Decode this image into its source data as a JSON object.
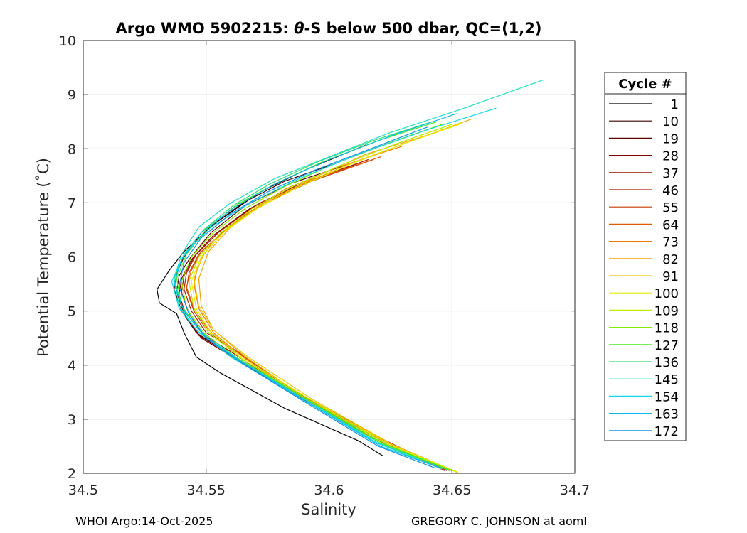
{
  "chart_data": {
    "type": "line",
    "title": {
      "prefix": "Argo WMO 5902215: ",
      "theta": "θ",
      "suffix": "-S below 500 dbar,  QC=(1,2)"
    },
    "xlabel": "Salinity",
    "ylabel": "Potential Temperature (˚C)",
    "xlim": [
      34.5,
      34.7
    ],
    "ylim": [
      2,
      10
    ],
    "xticks": [
      34.5,
      34.55,
      34.6,
      34.65,
      34.7
    ],
    "xtick_labels": [
      "34.5",
      "34.55",
      "34.6",
      "34.65",
      "34.7"
    ],
    "yticks": [
      2,
      3,
      4,
      5,
      6,
      7,
      8,
      9,
      10
    ],
    "ytick_labels": [
      "2",
      "3",
      "4",
      "5",
      "6",
      "7",
      "8",
      "9",
      "10"
    ],
    "grid": true,
    "legend": {
      "title": "Cycle #",
      "placement": "outside-right",
      "entries": [
        {
          "label": "1",
          "color": "#000000"
        },
        {
          "label": "10",
          "color": "#3a0000"
        },
        {
          "label": "19",
          "color": "#5c0000"
        },
        {
          "label": "28",
          "color": "#800000"
        },
        {
          "label": "37",
          "color": "#9a0f00"
        },
        {
          "label": "46",
          "color": "#b01e00"
        },
        {
          "label": "55",
          "color": "#c83a00"
        },
        {
          "label": "64",
          "color": "#e05a00"
        },
        {
          "label": "73",
          "color": "#f07a00"
        },
        {
          "label": "82",
          "color": "#f5a000"
        },
        {
          "label": "91",
          "color": "#f0c800"
        },
        {
          "label": "100",
          "color": "#e8ec00"
        },
        {
          "label": "109",
          "color": "#b8f000"
        },
        {
          "label": "118",
          "color": "#7ef000"
        },
        {
          "label": "127",
          "color": "#48ec20"
        },
        {
          "label": "136",
          "color": "#30e070"
        },
        {
          "label": "145",
          "color": "#20e0c0"
        },
        {
          "label": "154",
          "color": "#10d8e8"
        },
        {
          "label": "163",
          "color": "#10b8f0"
        },
        {
          "label": "172",
          "color": "#1090e8"
        }
      ]
    },
    "series": [
      {
        "name": "1",
        "color": "#000000",
        "S": [
          34.615,
          34.59,
          34.572,
          34.553,
          34.541,
          34.535,
          34.53,
          34.531,
          34.538,
          34.541,
          34.546,
          34.556,
          34.582,
          34.612,
          34.622
        ],
        "T": [
          8.07,
          7.6,
          7.2,
          6.6,
          6.1,
          5.75,
          5.4,
          5.15,
          4.95,
          4.6,
          4.15,
          3.85,
          3.2,
          2.6,
          2.32
        ]
      },
      {
        "name": "10",
        "color": "#3a0000",
        "S": [
          34.604,
          34.582,
          34.565,
          34.55,
          34.541,
          34.538,
          34.537,
          34.54,
          34.546,
          34.556,
          34.582,
          34.618,
          34.645
        ],
        "T": [
          7.75,
          7.4,
          7.0,
          6.5,
          6.0,
          5.7,
          5.4,
          5.0,
          4.6,
          4.3,
          3.55,
          2.7,
          2.1
        ]
      },
      {
        "name": "19",
        "color": "#5c0000",
        "S": [
          34.607,
          34.584,
          34.566,
          34.552,
          34.543,
          34.539,
          34.538,
          34.541,
          34.547,
          34.558,
          34.584,
          34.62,
          34.646
        ],
        "T": [
          7.7,
          7.35,
          6.95,
          6.45,
          5.95,
          5.65,
          5.35,
          4.95,
          4.55,
          4.25,
          3.5,
          2.65,
          2.08
        ]
      },
      {
        "name": "28",
        "color": "#800000",
        "S": [
          34.61,
          34.586,
          34.568,
          34.553,
          34.544,
          34.54,
          34.539,
          34.542,
          34.548,
          34.559,
          34.582,
          34.621,
          34.648
        ],
        "T": [
          7.7,
          7.3,
          6.9,
          6.4,
          5.95,
          5.6,
          5.3,
          4.9,
          4.5,
          4.2,
          3.6,
          2.65,
          2.05
        ]
      },
      {
        "name": "37",
        "color": "#9a0f00",
        "S": [
          34.613,
          34.589,
          34.57,
          34.555,
          34.545,
          34.541,
          34.54,
          34.543,
          34.549,
          34.56,
          34.585,
          34.621,
          34.647
        ],
        "T": [
          7.75,
          7.35,
          6.95,
          6.45,
          6.0,
          5.65,
          5.35,
          4.95,
          4.55,
          4.25,
          3.5,
          2.62,
          2.05
        ]
      },
      {
        "name": "46",
        "color": "#b01e00",
        "S": [
          34.616,
          34.591,
          34.572,
          34.556,
          34.546,
          34.542,
          34.541,
          34.544,
          34.55,
          34.561,
          34.585,
          34.622,
          34.649
        ],
        "T": [
          7.8,
          7.4,
          7.0,
          6.5,
          6.05,
          5.7,
          5.4,
          5.0,
          4.6,
          4.3,
          3.55,
          2.62,
          2.05
        ]
      },
      {
        "name": "55",
        "color": "#c83a00",
        "S": [
          34.618,
          34.593,
          34.574,
          34.558,
          34.547,
          34.543,
          34.542,
          34.545,
          34.551,
          34.561,
          34.584,
          34.622,
          34.648
        ],
        "T": [
          7.8,
          7.4,
          7.0,
          6.5,
          6.05,
          5.7,
          5.4,
          5.0,
          4.6,
          4.3,
          3.55,
          2.6,
          2.05
        ]
      },
      {
        "name": "64",
        "color": "#e05a00",
        "S": [
          34.621,
          34.595,
          34.575,
          34.559,
          34.548,
          34.544,
          34.542,
          34.545,
          34.551,
          34.56,
          34.582,
          34.618,
          34.646
        ],
        "T": [
          7.85,
          7.45,
          7.05,
          6.55,
          6.1,
          5.75,
          5.45,
          5.05,
          4.65,
          4.3,
          3.6,
          2.65,
          2.08
        ]
      },
      {
        "name": "73",
        "color": "#f07a00",
        "S": [
          34.63,
          34.603,
          34.582,
          34.565,
          34.553,
          34.547,
          34.545,
          34.547,
          34.553,
          34.562,
          34.585,
          34.622,
          34.65
        ],
        "T": [
          8.05,
          7.65,
          7.25,
          6.75,
          6.3,
          5.9,
          5.5,
          5.05,
          4.6,
          4.25,
          3.5,
          2.6,
          2.05
        ]
      },
      {
        "name": "82",
        "color": "#f5a000",
        "S": [
          34.658,
          34.64,
          34.615,
          34.593,
          34.574,
          34.56,
          34.551,
          34.547,
          34.548,
          34.553,
          34.566,
          34.59,
          34.625,
          34.653
        ],
        "T": [
          8.55,
          8.25,
          7.9,
          7.45,
          7.0,
          6.55,
          6.1,
          5.6,
          5.1,
          4.65,
          4.15,
          3.4,
          2.55,
          2.0
        ]
      },
      {
        "name": "91",
        "color": "#f0c800",
        "S": [
          34.655,
          34.634,
          34.61,
          34.589,
          34.572,
          34.558,
          34.549,
          34.545,
          34.547,
          34.553,
          34.567,
          34.592,
          34.627,
          34.652
        ],
        "T": [
          8.5,
          8.15,
          7.75,
          7.35,
          6.95,
          6.5,
          6.05,
          5.6,
          5.1,
          4.65,
          4.15,
          3.4,
          2.5,
          2.02
        ]
      },
      {
        "name": "100",
        "color": "#e8ec00",
        "S": [
          34.653,
          34.631,
          34.608,
          34.588,
          34.571,
          34.557,
          34.548,
          34.544,
          34.546,
          34.552,
          34.566,
          34.591,
          34.626,
          34.652
        ],
        "T": [
          8.45,
          8.1,
          7.7,
          7.3,
          6.9,
          6.45,
          6.0,
          5.55,
          5.05,
          4.6,
          4.1,
          3.4,
          2.5,
          2.03
        ]
      },
      {
        "name": "109",
        "color": "#b8f000",
        "S": [
          34.65,
          34.628,
          34.605,
          34.585,
          34.569,
          34.556,
          34.547,
          34.543,
          34.545,
          34.551,
          34.565,
          34.59,
          34.625,
          34.651
        ],
        "T": [
          8.45,
          8.1,
          7.7,
          7.3,
          6.9,
          6.45,
          6.0,
          5.55,
          5.05,
          4.6,
          4.1,
          3.4,
          2.5,
          2.04
        ]
      },
      {
        "name": "118",
        "color": "#7ef000",
        "S": [
          34.646,
          34.624,
          34.601,
          34.582,
          34.566,
          34.553,
          34.544,
          34.54,
          34.542,
          34.549,
          34.563,
          34.589,
          34.623,
          34.65
        ],
        "T": [
          8.45,
          8.1,
          7.7,
          7.3,
          6.9,
          6.45,
          6.0,
          5.55,
          5.05,
          4.6,
          4.1,
          3.4,
          2.5,
          2.05
        ]
      },
      {
        "name": "127",
        "color": "#48ec20",
        "S": [
          34.644,
          34.62,
          34.597,
          34.578,
          34.562,
          34.55,
          34.542,
          34.538,
          34.54,
          34.547,
          34.562,
          34.588,
          34.622,
          34.649
        ],
        "T": [
          8.5,
          8.15,
          7.75,
          7.35,
          6.95,
          6.5,
          6.05,
          5.6,
          5.1,
          4.65,
          4.15,
          3.45,
          2.55,
          2.06
        ]
      },
      {
        "name": "136",
        "color": "#30e070",
        "S": [
          34.642,
          34.618,
          34.595,
          34.576,
          34.561,
          34.549,
          34.541,
          34.537,
          34.54,
          34.547,
          34.562,
          34.587,
          34.621,
          34.648
        ],
        "T": [
          8.5,
          8.15,
          7.75,
          7.35,
          6.95,
          6.5,
          6.05,
          5.6,
          5.1,
          4.65,
          4.15,
          3.45,
          2.55,
          2.07
        ]
      },
      {
        "name": "145",
        "color": "#20e0c0",
        "S": [
          34.687,
          34.655,
          34.625,
          34.6,
          34.578,
          34.56,
          34.547,
          34.54,
          34.537,
          34.539,
          34.546,
          34.56,
          34.586,
          34.62,
          34.646
        ],
        "T": [
          9.27,
          8.75,
          8.3,
          7.85,
          7.45,
          7.0,
          6.55,
          6.05,
          5.6,
          5.1,
          4.65,
          4.15,
          3.45,
          2.55,
          2.08
        ]
      },
      {
        "name": "154",
        "color": "#10d8e8",
        "S": [
          34.668,
          34.64,
          34.612,
          34.588,
          34.568,
          34.552,
          34.541,
          34.536,
          34.539,
          34.547,
          34.561,
          34.587,
          34.62,
          34.645
        ],
        "T": [
          8.75,
          8.35,
          7.9,
          7.45,
          7.0,
          6.55,
          6.05,
          5.55,
          5.05,
          4.6,
          4.15,
          3.45,
          2.55,
          2.1
        ]
      },
      {
        "name": "163",
        "color": "#10b8f0",
        "S": [
          34.652,
          34.626,
          34.6,
          34.578,
          34.561,
          34.548,
          34.54,
          34.537,
          34.541,
          34.549,
          34.563,
          34.588,
          34.621,
          34.645
        ],
        "T": [
          8.65,
          8.25,
          7.8,
          7.35,
          6.9,
          6.45,
          5.95,
          5.5,
          5.0,
          4.55,
          4.1,
          3.4,
          2.5,
          2.1
        ]
      },
      {
        "name": "172",
        "color": "#1090e8",
        "S": [
          34.64,
          34.617,
          34.594,
          34.575,
          34.56,
          34.548,
          34.541,
          34.539,
          34.543,
          34.55,
          34.564,
          34.589,
          34.62,
          34.643
        ],
        "T": [
          8.4,
          8.0,
          7.6,
          7.2,
          6.8,
          6.35,
          5.9,
          5.45,
          4.95,
          4.5,
          4.05,
          3.35,
          2.5,
          2.1
        ]
      }
    ]
  },
  "footer": {
    "left": "WHOI Argo:14-Oct-2025",
    "right": "GREGORY C. JOHNSON at aoml"
  }
}
